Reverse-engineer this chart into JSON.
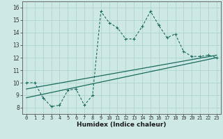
{
  "title": "",
  "xlabel": "Humidex (Indice chaleur)",
  "ylabel": "",
  "background_color": "#cde8e5",
  "line_color": "#1a6b5e",
  "xlim": [
    -0.5,
    23.5
  ],
  "ylim": [
    7.5,
    16.5
  ],
  "xticks": [
    0,
    1,
    2,
    3,
    4,
    5,
    6,
    7,
    8,
    9,
    10,
    11,
    12,
    13,
    14,
    15,
    16,
    17,
    18,
    19,
    20,
    21,
    22,
    23
  ],
  "yticks": [
    8,
    9,
    10,
    11,
    12,
    13,
    14,
    15,
    16
  ],
  "series1_x": [
    0,
    1,
    2,
    3,
    4,
    5,
    6,
    7,
    8,
    9,
    10,
    11,
    12,
    13,
    14,
    15,
    16,
    17,
    18,
    19,
    20,
    21,
    22,
    23
  ],
  "series1_y": [
    10.0,
    10.0,
    8.8,
    8.1,
    8.2,
    9.4,
    9.5,
    8.2,
    9.0,
    15.7,
    14.8,
    14.4,
    13.5,
    13.5,
    14.5,
    15.7,
    14.6,
    13.6,
    13.9,
    12.5,
    12.1,
    12.1,
    12.2,
    12.0
  ],
  "series2_x": [
    0,
    23
  ],
  "series2_y": [
    9.5,
    12.2
  ],
  "series3_x": [
    0,
    23
  ],
  "series3_y": [
    8.8,
    12.0
  ],
  "grid_color": "#afd4d0",
  "figsize": [
    3.2,
    2.0
  ],
  "dpi": 100,
  "xlabel_fontsize": 6.5,
  "tick_fontsize": 5.0
}
